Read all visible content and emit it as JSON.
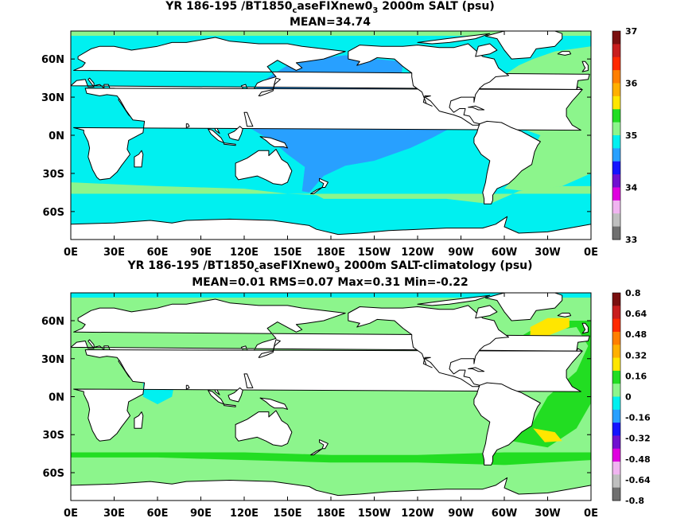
{
  "panels": [
    {
      "title_prefix": "YR 186-195 /BT1850",
      "title_sub1": "c",
      "title_mid": "aseFIXnew0",
      "title_sub2": "3",
      "title_suffix": " 2000m SALT (psu)",
      "stats": "MEAN=34.74",
      "colorbar_labels": [
        "37",
        "36",
        "35",
        "34",
        "33"
      ],
      "colorbar_colors": [
        "#7a1010",
        "#c81e1e",
        "#ff2a00",
        "#ff7f00",
        "#ffb000",
        "#ffe600",
        "#22dd22",
        "#8cf58c",
        "#00f0f0",
        "#28a0ff",
        "#1414ff",
        "#7010d0",
        "#e000e0",
        "#f0b4f0",
        "#bfbfbf",
        "#707070"
      ]
    },
    {
      "title_prefix": "YR 186-195 /BT1850",
      "title_sub1": "c",
      "title_mid": "aseFIXnew0",
      "title_sub2": "3",
      "title_suffix": " 2000m SALT-climatology (psu)",
      "stats": "MEAN=0.01   RMS=0.07   Max=0.31   Min=-0.22",
      "colorbar_labels": [
        "0.8",
        "0.64",
        "0.48",
        "0.32",
        "0.16",
        "0",
        "-0.16",
        "-0.32",
        "-0.48",
        "-0.64",
        "-0.8"
      ],
      "colorbar_colors": [
        "#7a1010",
        "#c81e1e",
        "#ff2a00",
        "#ff7f00",
        "#ffb000",
        "#ffe600",
        "#22dd22",
        "#8cf58c",
        "#00f0f0",
        "#28a0ff",
        "#1414ff",
        "#7010d0",
        "#e000e0",
        "#f0b4f0",
        "#bfbfbf",
        "#707070"
      ]
    }
  ],
  "lon_ticks": [
    "0E",
    "30E",
    "60E",
    "90E",
    "120E",
    "150E",
    "180E",
    "150W",
    "120W",
    "90W",
    "60W",
    "30W",
    "0E"
  ],
  "lat_ticks": [
    "60N",
    "30N",
    "0N",
    "30S",
    "60S"
  ],
  "colors": {
    "land": "#ffffff",
    "ice": "#ffffff",
    "coast": "#000000",
    "top_pacific": "#28a0ff",
    "top_southern": "#8cf58c",
    "top_main": "#00f0f0",
    "top_atlantic": "#8cf58c",
    "top_atl_high": "#22dd22",
    "bot_main": "#8cf58c",
    "bot_indian": "#00f0f0",
    "bot_band": "#22dd22",
    "bot_yellow": "#ffe600"
  }
}
